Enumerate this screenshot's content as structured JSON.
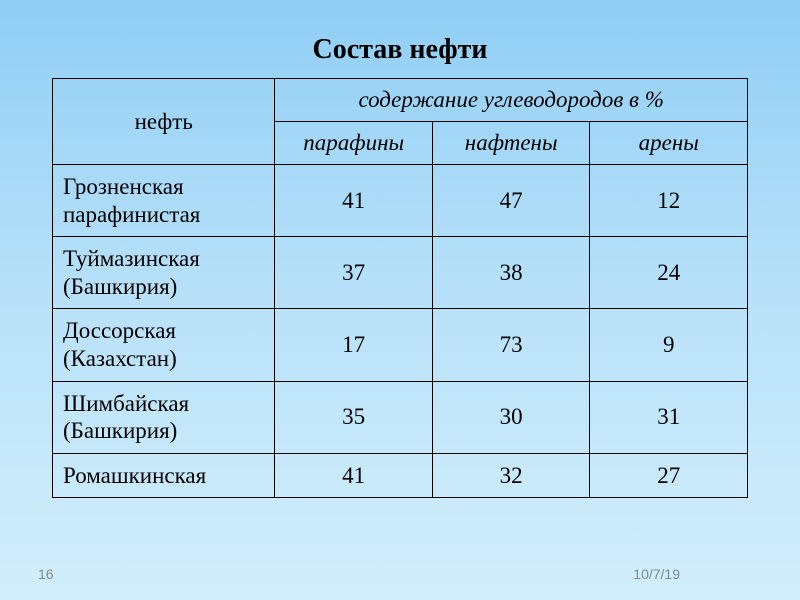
{
  "title": "Состав нефти",
  "table": {
    "header_oil": "нефть",
    "header_content": "содержание углеводородов в %",
    "columns": [
      "парафины",
      "нафтены",
      "арены"
    ],
    "rows": [
      {
        "name": "Грозненская парафинистая",
        "values": [
          41,
          47,
          12
        ]
      },
      {
        "name": "Туймазинская (Башкирия)",
        "values": [
          37,
          38,
          24
        ]
      },
      {
        "name": "Доссорская (Казахстан)",
        "values": [
          17,
          73,
          9
        ]
      },
      {
        "name": "Шимбайская\n(Башкирия)",
        "values": [
          35,
          30,
          31
        ]
      },
      {
        "name": "Ромашкинская",
        "values": [
          41,
          32,
          27
        ]
      }
    ]
  },
  "footer": {
    "page_number": "16",
    "date": "10/7/19"
  },
  "styling": {
    "title_fontsize": 28,
    "cell_fontsize": 23,
    "footer_fontsize": 14,
    "title_color": "#000000",
    "cell_text_color": "#000000",
    "border_color": "#000000",
    "footer_color": "#7a8b95",
    "background_gradient_top": "#8fcef5",
    "background_gradient_bottom": "#d2eefb",
    "font_family": "Times New Roman",
    "col_widths_pct": [
      32,
      22.666,
      22.666,
      22.666
    ]
  }
}
